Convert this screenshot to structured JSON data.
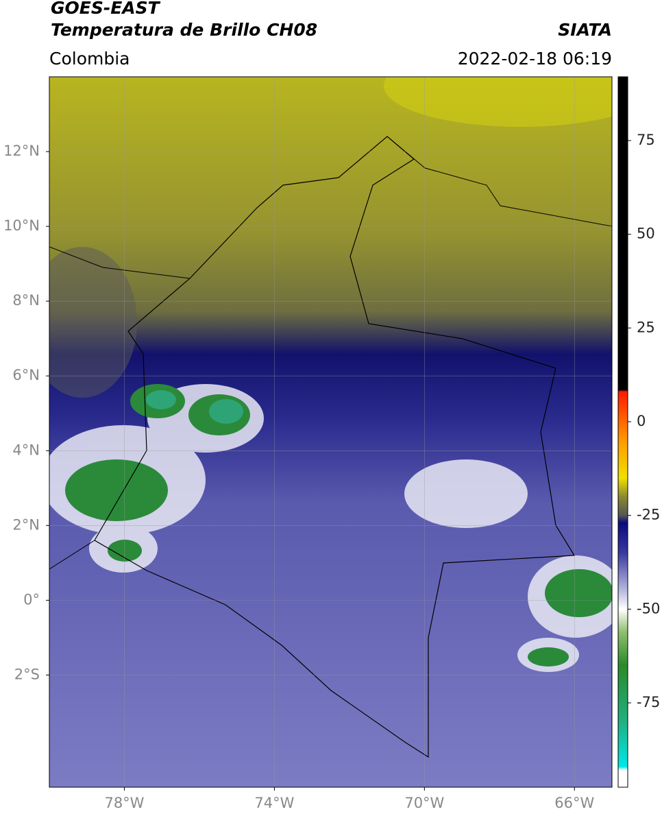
{
  "header": {
    "satellite": "GOES-EAST",
    "product": "Temperatura de Brillo CH08",
    "source": "SIATA",
    "region": "Colombia",
    "datetime": "2022-02-18 06:19"
  },
  "map": {
    "lonlim": [
      -80,
      -65
    ],
    "latlim": [
      -5,
      14
    ],
    "grid": true,
    "lonticks": [
      {
        "value": -78,
        "label": "78°W"
      },
      {
        "value": -74,
        "label": "74°W"
      },
      {
        "value": -70,
        "label": "70°W"
      },
      {
        "value": -66,
        "label": "66°W"
      }
    ],
    "latticks": [
      {
        "value": 12,
        "label": "12°N"
      },
      {
        "value": 10,
        "label": "10°N"
      },
      {
        "value": 8,
        "label": "8°N"
      },
      {
        "value": 6,
        "label": "6°N"
      },
      {
        "value": 4,
        "label": "4°N"
      },
      {
        "value": 2,
        "label": "2°N"
      },
      {
        "value": 0,
        "label": "0°"
      },
      {
        "value": -2,
        "label": "2°S"
      }
    ]
  },
  "colorbar": {
    "lim": [
      -97.5,
      92
    ],
    "ticks": [
      75,
      50,
      25,
      0,
      -25,
      -50,
      -75
    ],
    "stops": [
      {
        "value": 92,
        "color": "#000000"
      },
      {
        "value": 8.5,
        "color": "#000000"
      },
      {
        "value": 8,
        "color": "#ff1a00"
      },
      {
        "value": -5,
        "color": "#ff9900"
      },
      {
        "value": -15,
        "color": "#f0e000"
      },
      {
        "value": -20,
        "color": "#8a8a30"
      },
      {
        "value": -25,
        "color": "#555555"
      },
      {
        "value": -27,
        "color": "#0a0a80"
      },
      {
        "value": -35,
        "color": "#3a3aa0"
      },
      {
        "value": -45,
        "color": "#b8b8e0"
      },
      {
        "value": -50,
        "color": "#ffffff"
      },
      {
        "value": -56,
        "color": "#90c070"
      },
      {
        "value": -65,
        "color": "#2a8a2a"
      },
      {
        "value": -80,
        "color": "#20b080"
      },
      {
        "value": -92,
        "color": "#00e8e8"
      },
      {
        "value": -93,
        "color": "#ffffff"
      },
      {
        "value": -97.5,
        "color": "#ffffff"
      }
    ]
  }
}
